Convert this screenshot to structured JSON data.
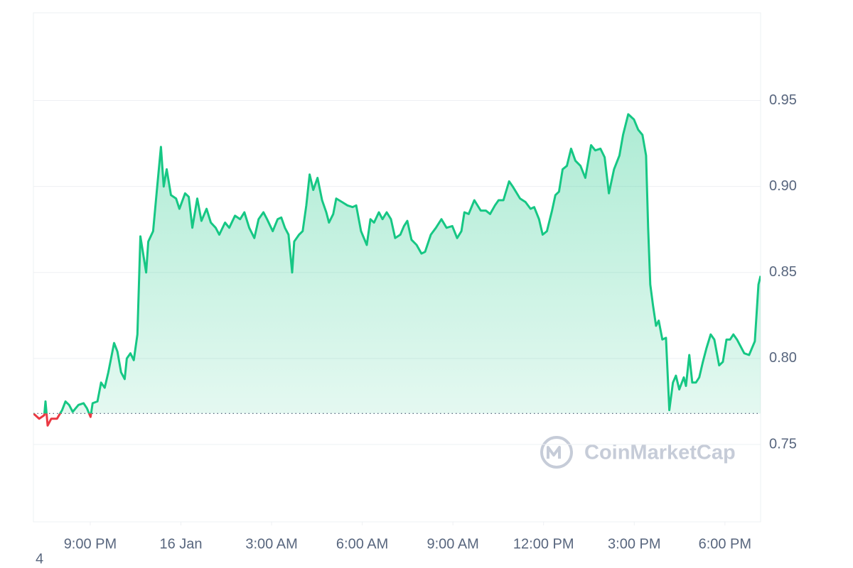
{
  "chart_data": {
    "type": "line",
    "x": [
      -4.88,
      -4.69,
      -4.52,
      -4.48,
      -4.41,
      -4.29,
      -4.1,
      -3.93,
      -3.82,
      -3.7,
      -3.58,
      -3.39,
      -3.22,
      -3.11,
      -2.99,
      -2.92,
      -2.76,
      -2.64,
      -2.52,
      -2.4,
      -2.21,
      -2.1,
      -1.98,
      -1.86,
      -1.79,
      -1.67,
      -1.56,
      -1.44,
      -1.34,
      -1.15,
      -1.08,
      -0.92,
      -0.8,
      -0.66,
      -0.57,
      -0.47,
      -0.33,
      -0.16,
      -0.05,
      0.14,
      0.26,
      0.38,
      0.54,
      0.68,
      0.85,
      0.99,
      1.15,
      1.27,
      1.46,
      1.6,
      1.79,
      1.96,
      2.1,
      2.26,
      2.43,
      2.57,
      2.73,
      2.85,
      3.04,
      3.2,
      3.32,
      3.44,
      3.56,
      3.68,
      3.75,
      3.91,
      4.03,
      4.15,
      4.26,
      4.38,
      4.52,
      4.67,
      4.81,
      4.9,
      5.04,
      5.14,
      5.33,
      5.51,
      5.68,
      5.8,
      5.96,
      6.15,
      6.27,
      6.39,
      6.55,
      6.67,
      6.81,
      6.95,
      7.09,
      7.26,
      7.38,
      7.49,
      7.63,
      7.8,
      7.96,
      8.08,
      8.27,
      8.44,
      8.62,
      8.79,
      8.98,
      9.14,
      9.28,
      9.38,
      9.52,
      9.71,
      9.92,
      10.09,
      10.23,
      10.39,
      10.51,
      10.67,
      10.86,
      10.98,
      11.22,
      11.4,
      11.57,
      11.69,
      11.85,
      11.97,
      12.11,
      12.28,
      12.39,
      12.51,
      12.63,
      12.77,
      12.91,
      13.05,
      13.22,
      13.38,
      13.57,
      13.71,
      13.88,
      14.02,
      14.16,
      14.33,
      14.51,
      14.63,
      14.8,
      14.99,
      15.13,
      15.27,
      15.39,
      15.46,
      15.53,
      15.62,
      15.72,
      15.81,
      15.93,
      16.05,
      16.16,
      16.28,
      16.38,
      16.49,
      16.64,
      16.71,
      16.82,
      16.92,
      17.04,
      17.15,
      17.27,
      17.39,
      17.53,
      17.65,
      17.81,
      17.93,
      18.05,
      18.17,
      18.28,
      18.4,
      18.64,
      18.8,
      18.99,
      19.11,
      19.18
    ],
    "values": [
      0.768,
      0.765,
      0.767,
      0.775,
      0.761,
      0.765,
      0.765,
      0.77,
      0.775,
      0.773,
      0.769,
      0.773,
      0.774,
      0.771,
      0.766,
      0.774,
      0.775,
      0.786,
      0.783,
      0.792,
      0.809,
      0.804,
      0.792,
      0.788,
      0.8,
      0.803,
      0.799,
      0.814,
      0.871,
      0.85,
      0.868,
      0.874,
      0.897,
      0.923,
      0.9,
      0.91,
      0.895,
      0.893,
      0.887,
      0.896,
      0.894,
      0.876,
      0.893,
      0.88,
      0.887,
      0.879,
      0.876,
      0.872,
      0.879,
      0.876,
      0.883,
      0.881,
      0.885,
      0.876,
      0.87,
      0.881,
      0.885,
      0.881,
      0.874,
      0.881,
      0.882,
      0.876,
      0.872,
      0.85,
      0.868,
      0.872,
      0.874,
      0.889,
      0.907,
      0.898,
      0.905,
      0.892,
      0.885,
      0.879,
      0.884,
      0.893,
      0.891,
      0.889,
      0.888,
      0.889,
      0.874,
      0.866,
      0.881,
      0.879,
      0.885,
      0.881,
      0.885,
      0.881,
      0.87,
      0.872,
      0.877,
      0.88,
      0.869,
      0.866,
      0.861,
      0.862,
      0.872,
      0.876,
      0.881,
      0.876,
      0.877,
      0.87,
      0.874,
      0.885,
      0.884,
      0.892,
      0.886,
      0.886,
      0.884,
      0.889,
      0.892,
      0.892,
      0.903,
      0.9,
      0.893,
      0.891,
      0.887,
      0.888,
      0.881,
      0.872,
      0.874,
      0.886,
      0.895,
      0.897,
      0.91,
      0.912,
      0.922,
      0.915,
      0.912,
      0.905,
      0.924,
      0.921,
      0.922,
      0.917,
      0.896,
      0.91,
      0.918,
      0.93,
      0.942,
      0.939,
      0.933,
      0.93,
      0.918,
      0.876,
      0.843,
      0.831,
      0.819,
      0.822,
      0.811,
      0.812,
      0.77,
      0.786,
      0.79,
      0.782,
      0.789,
      0.784,
      0.802,
      0.786,
      0.786,
      0.789,
      0.798,
      0.806,
      0.814,
      0.811,
      0.796,
      0.798,
      0.811,
      0.811,
      0.814,
      0.811,
      0.803,
      0.802,
      0.81,
      0.843,
      0.848
    ],
    "baseline": 0.768,
    "up_color": "#16c784",
    "down_color": "#ea3943",
    "xlim": [
      -4.88,
      19.18
    ],
    "xticks": [
      {
        "value": -3,
        "label": "9:00 PM"
      },
      {
        "value": 0,
        "label": "16 Jan"
      },
      {
        "value": 3,
        "label": "3:00 AM"
      },
      {
        "value": 6,
        "label": "6:00 AM"
      },
      {
        "value": 9,
        "label": "9:00 AM"
      },
      {
        "value": 12,
        "label": "12:00 PM"
      },
      {
        "value": 15,
        "label": "3:00 PM"
      },
      {
        "value": 18,
        "label": "6:00 PM"
      }
    ],
    "ylim": [
      0.705,
      1.001
    ],
    "yticks": [
      0.75,
      {
        "value": 0.8,
        "label": "0.80"
      },
      0.85,
      {
        "value": 0.9,
        "label": "0.90"
      },
      0.95
    ],
    "grid": true,
    "watermark": "CoinMarketCap",
    "footnote": "4"
  }
}
